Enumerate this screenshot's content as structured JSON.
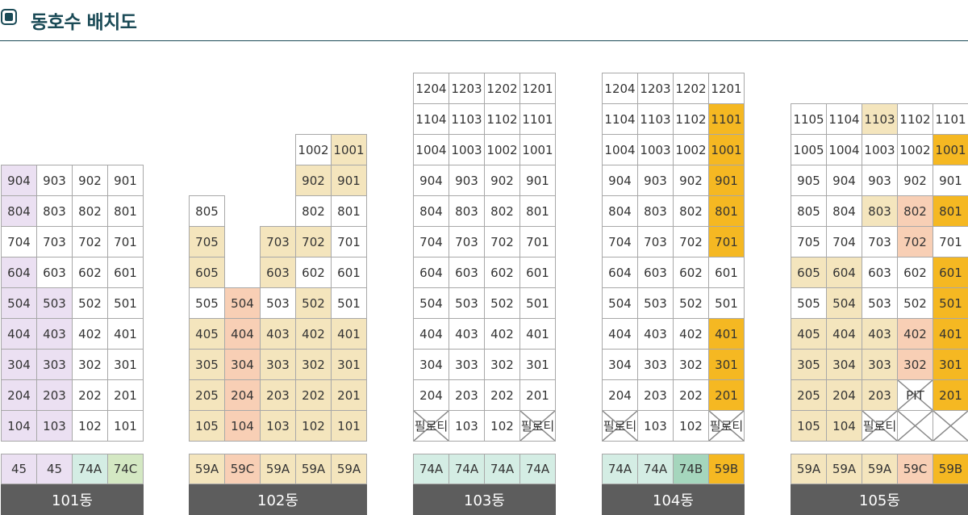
{
  "page": {
    "title": "동호수 배치도"
  },
  "colors": {
    "white": "#ffffff",
    "lavender": "#ebe0f2",
    "beige": "#f4e5bd",
    "salmon": "#f8cfb5",
    "mint": "#d4ede4",
    "lightgreen": "#d4e8c3",
    "green": "#a5d6bd",
    "gold": "#f5b822",
    "label_bg": "#5d5d5d",
    "accent": "#1a4a56"
  },
  "buildings": [
    {
      "name": "101동",
      "floors": [
        [
          [
            "904",
            "lavender"
          ],
          [
            "903",
            "white"
          ],
          [
            "902",
            "white"
          ],
          [
            "901",
            "white"
          ]
        ],
        [
          [
            "804",
            "lavender"
          ],
          [
            "803",
            "white"
          ],
          [
            "802",
            "white"
          ],
          [
            "801",
            "white"
          ]
        ],
        [
          [
            "704",
            "white"
          ],
          [
            "703",
            "white"
          ],
          [
            "702",
            "white"
          ],
          [
            "701",
            "white"
          ]
        ],
        [
          [
            "604",
            "lavender"
          ],
          [
            "603",
            "white"
          ],
          [
            "602",
            "white"
          ],
          [
            "601",
            "white"
          ]
        ],
        [
          [
            "504",
            "lavender"
          ],
          [
            "503",
            "lavender"
          ],
          [
            "502",
            "white"
          ],
          [
            "501",
            "white"
          ]
        ],
        [
          [
            "404",
            "lavender"
          ],
          [
            "403",
            "lavender"
          ],
          [
            "402",
            "white"
          ],
          [
            "401",
            "white"
          ]
        ],
        [
          [
            "304",
            "lavender"
          ],
          [
            "303",
            "lavender"
          ],
          [
            "302",
            "white"
          ],
          [
            "301",
            "white"
          ]
        ],
        [
          [
            "204",
            "lavender"
          ],
          [
            "203",
            "lavender"
          ],
          [
            "202",
            "white"
          ],
          [
            "201",
            "white"
          ]
        ],
        [
          [
            "104",
            "lavender"
          ],
          [
            "103",
            "lavender"
          ],
          [
            "102",
            "white"
          ],
          [
            "101",
            "white"
          ]
        ]
      ],
      "types": [
        [
          "45",
          "lavender"
        ],
        [
          "45",
          "lavender"
        ],
        [
          "74A",
          "mint"
        ],
        [
          "74C",
          "lightgreen"
        ]
      ]
    },
    {
      "name": "102동",
      "floors": [
        [
          null,
          null,
          null,
          [
            "1002",
            "white"
          ],
          [
            "1001",
            "beige"
          ]
        ],
        [
          null,
          null,
          null,
          [
            "902",
            "beige"
          ],
          [
            "901",
            "beige"
          ]
        ],
        [
          [
            "805",
            "white"
          ],
          null,
          null,
          [
            "802",
            "white"
          ],
          [
            "801",
            "white"
          ]
        ],
        [
          [
            "705",
            "beige"
          ],
          null,
          [
            "703",
            "beige"
          ],
          [
            "702",
            "beige"
          ],
          [
            "701",
            "white"
          ]
        ],
        [
          [
            "605",
            "beige"
          ],
          null,
          [
            "603",
            "beige"
          ],
          [
            "602",
            "white"
          ],
          [
            "601",
            "white"
          ]
        ],
        [
          [
            "505",
            "white"
          ],
          [
            "504",
            "salmon"
          ],
          [
            "503",
            "white"
          ],
          [
            "502",
            "beige"
          ],
          [
            "501",
            "white"
          ]
        ],
        [
          [
            "405",
            "beige"
          ],
          [
            "404",
            "salmon"
          ],
          [
            "403",
            "beige"
          ],
          [
            "402",
            "beige"
          ],
          [
            "401",
            "beige"
          ]
        ],
        [
          [
            "305",
            "beige"
          ],
          [
            "304",
            "salmon"
          ],
          [
            "303",
            "beige"
          ],
          [
            "302",
            "beige"
          ],
          [
            "301",
            "beige"
          ]
        ],
        [
          [
            "205",
            "beige"
          ],
          [
            "204",
            "salmon"
          ],
          [
            "203",
            "beige"
          ],
          [
            "202",
            "beige"
          ],
          [
            "201",
            "beige"
          ]
        ],
        [
          [
            "105",
            "beige"
          ],
          [
            "104",
            "salmon"
          ],
          [
            "103",
            "beige"
          ],
          [
            "102",
            "beige"
          ],
          [
            "101",
            "beige"
          ]
        ]
      ],
      "types": [
        [
          "59A",
          "beige"
        ],
        [
          "59C",
          "salmon"
        ],
        [
          "59A",
          "beige"
        ],
        [
          "59A",
          "beige"
        ],
        [
          "59A",
          "beige"
        ]
      ]
    },
    {
      "name": "103동",
      "floors": [
        [
          [
            "1204",
            "white"
          ],
          [
            "1203",
            "white"
          ],
          [
            "1202",
            "white"
          ],
          [
            "1201",
            "white"
          ]
        ],
        [
          [
            "1104",
            "white"
          ],
          [
            "1103",
            "white"
          ],
          [
            "1102",
            "white"
          ],
          [
            "1101",
            "white"
          ]
        ],
        [
          [
            "1004",
            "white"
          ],
          [
            "1003",
            "white"
          ],
          [
            "1002",
            "white"
          ],
          [
            "1001",
            "white"
          ]
        ],
        [
          [
            "904",
            "white"
          ],
          [
            "903",
            "white"
          ],
          [
            "902",
            "white"
          ],
          [
            "901",
            "white"
          ]
        ],
        [
          [
            "804",
            "white"
          ],
          [
            "803",
            "white"
          ],
          [
            "802",
            "white"
          ],
          [
            "801",
            "white"
          ]
        ],
        [
          [
            "704",
            "white"
          ],
          [
            "703",
            "white"
          ],
          [
            "702",
            "white"
          ],
          [
            "701",
            "white"
          ]
        ],
        [
          [
            "604",
            "white"
          ],
          [
            "603",
            "white"
          ],
          [
            "602",
            "white"
          ],
          [
            "601",
            "white"
          ]
        ],
        [
          [
            "504",
            "white"
          ],
          [
            "503",
            "white"
          ],
          [
            "502",
            "white"
          ],
          [
            "501",
            "white"
          ]
        ],
        [
          [
            "404",
            "white"
          ],
          [
            "403",
            "white"
          ],
          [
            "402",
            "white"
          ],
          [
            "401",
            "white"
          ]
        ],
        [
          [
            "304",
            "white"
          ],
          [
            "303",
            "white"
          ],
          [
            "302",
            "white"
          ],
          [
            "301",
            "white"
          ]
        ],
        [
          [
            "204",
            "white"
          ],
          [
            "203",
            "white"
          ],
          [
            "202",
            "white"
          ],
          [
            "201",
            "white"
          ]
        ],
        [
          [
            "필로티",
            "white",
            "x"
          ],
          [
            "103",
            "white"
          ],
          [
            "102",
            "white"
          ],
          [
            "필로티",
            "white",
            "x"
          ]
        ]
      ],
      "types": [
        [
          "74A",
          "mint"
        ],
        [
          "74A",
          "mint"
        ],
        [
          "74A",
          "mint"
        ],
        [
          "74A",
          "mint"
        ]
      ]
    },
    {
      "name": "104동",
      "floors": [
        [
          [
            "1204",
            "white"
          ],
          [
            "1203",
            "white"
          ],
          [
            "1202",
            "white"
          ],
          [
            "1201",
            "white"
          ]
        ],
        [
          [
            "1104",
            "white"
          ],
          [
            "1103",
            "white"
          ],
          [
            "1102",
            "white"
          ],
          [
            "1101",
            "gold"
          ]
        ],
        [
          [
            "1004",
            "white"
          ],
          [
            "1003",
            "white"
          ],
          [
            "1002",
            "white"
          ],
          [
            "1001",
            "gold"
          ]
        ],
        [
          [
            "904",
            "white"
          ],
          [
            "903",
            "white"
          ],
          [
            "902",
            "white"
          ],
          [
            "901",
            "gold"
          ]
        ],
        [
          [
            "804",
            "white"
          ],
          [
            "803",
            "white"
          ],
          [
            "802",
            "white"
          ],
          [
            "801",
            "gold"
          ]
        ],
        [
          [
            "704",
            "white"
          ],
          [
            "703",
            "white"
          ],
          [
            "702",
            "white"
          ],
          [
            "701",
            "gold"
          ]
        ],
        [
          [
            "604",
            "white"
          ],
          [
            "603",
            "white"
          ],
          [
            "602",
            "white"
          ],
          [
            "601",
            "white"
          ]
        ],
        [
          [
            "504",
            "white"
          ],
          [
            "503",
            "white"
          ],
          [
            "502",
            "white"
          ],
          [
            "501",
            "white"
          ]
        ],
        [
          [
            "404",
            "white"
          ],
          [
            "403",
            "white"
          ],
          [
            "402",
            "white"
          ],
          [
            "401",
            "gold"
          ]
        ],
        [
          [
            "304",
            "white"
          ],
          [
            "303",
            "white"
          ],
          [
            "302",
            "white"
          ],
          [
            "301",
            "gold"
          ]
        ],
        [
          [
            "204",
            "white"
          ],
          [
            "203",
            "white"
          ],
          [
            "202",
            "white"
          ],
          [
            "201",
            "gold"
          ]
        ],
        [
          [
            "필로티",
            "white",
            "x"
          ],
          [
            "103",
            "white"
          ],
          [
            "102",
            "white"
          ],
          [
            "필로티",
            "white",
            "x"
          ]
        ]
      ],
      "types": [
        [
          "74A",
          "mint"
        ],
        [
          "74A",
          "mint"
        ],
        [
          "74B",
          "green"
        ],
        [
          "59B",
          "gold"
        ]
      ]
    },
    {
      "name": "105동",
      "floors": [
        [
          [
            "1105",
            "white"
          ],
          [
            "1104",
            "white"
          ],
          [
            "1103",
            "beige"
          ],
          [
            "1102",
            "white"
          ],
          [
            "1101",
            "white"
          ]
        ],
        [
          [
            "1005",
            "white"
          ],
          [
            "1004",
            "white"
          ],
          [
            "1003",
            "white"
          ],
          [
            "1002",
            "white"
          ],
          [
            "1001",
            "gold"
          ]
        ],
        [
          [
            "905",
            "white"
          ],
          [
            "904",
            "white"
          ],
          [
            "903",
            "white"
          ],
          [
            "902",
            "white"
          ],
          [
            "901",
            "white"
          ]
        ],
        [
          [
            "805",
            "white"
          ],
          [
            "804",
            "white"
          ],
          [
            "803",
            "beige"
          ],
          [
            "802",
            "salmon"
          ],
          [
            "801",
            "gold"
          ]
        ],
        [
          [
            "705",
            "white"
          ],
          [
            "704",
            "white"
          ],
          [
            "703",
            "white"
          ],
          [
            "702",
            "salmon"
          ],
          [
            "701",
            "white"
          ]
        ],
        [
          [
            "605",
            "beige"
          ],
          [
            "604",
            "beige"
          ],
          [
            "603",
            "white"
          ],
          [
            "602",
            "white"
          ],
          [
            "601",
            "gold"
          ]
        ],
        [
          [
            "505",
            "white"
          ],
          [
            "504",
            "beige"
          ],
          [
            "503",
            "white"
          ],
          [
            "502",
            "white"
          ],
          [
            "501",
            "gold"
          ]
        ],
        [
          [
            "405",
            "beige"
          ],
          [
            "404",
            "beige"
          ],
          [
            "403",
            "beige"
          ],
          [
            "402",
            "salmon"
          ],
          [
            "401",
            "gold"
          ]
        ],
        [
          [
            "305",
            "beige"
          ],
          [
            "304",
            "beige"
          ],
          [
            "303",
            "beige"
          ],
          [
            "302",
            "salmon"
          ],
          [
            "301",
            "gold"
          ]
        ],
        [
          [
            "205",
            "beige"
          ],
          [
            "204",
            "beige"
          ],
          [
            "203",
            "beige"
          ],
          [
            "PIT",
            "white",
            "x"
          ],
          [
            "201",
            "gold"
          ]
        ],
        [
          [
            "105",
            "beige"
          ],
          [
            "104",
            "beige"
          ],
          [
            "필로티",
            "white",
            "x"
          ],
          [
            "",
            "white",
            "x"
          ],
          [
            "",
            "white",
            "x"
          ]
        ]
      ],
      "types": [
        [
          "59A",
          "beige"
        ],
        [
          "59A",
          "beige"
        ],
        [
          "59A",
          "beige"
        ],
        [
          "59C",
          "salmon"
        ],
        [
          "59B",
          "gold"
        ]
      ]
    }
  ]
}
